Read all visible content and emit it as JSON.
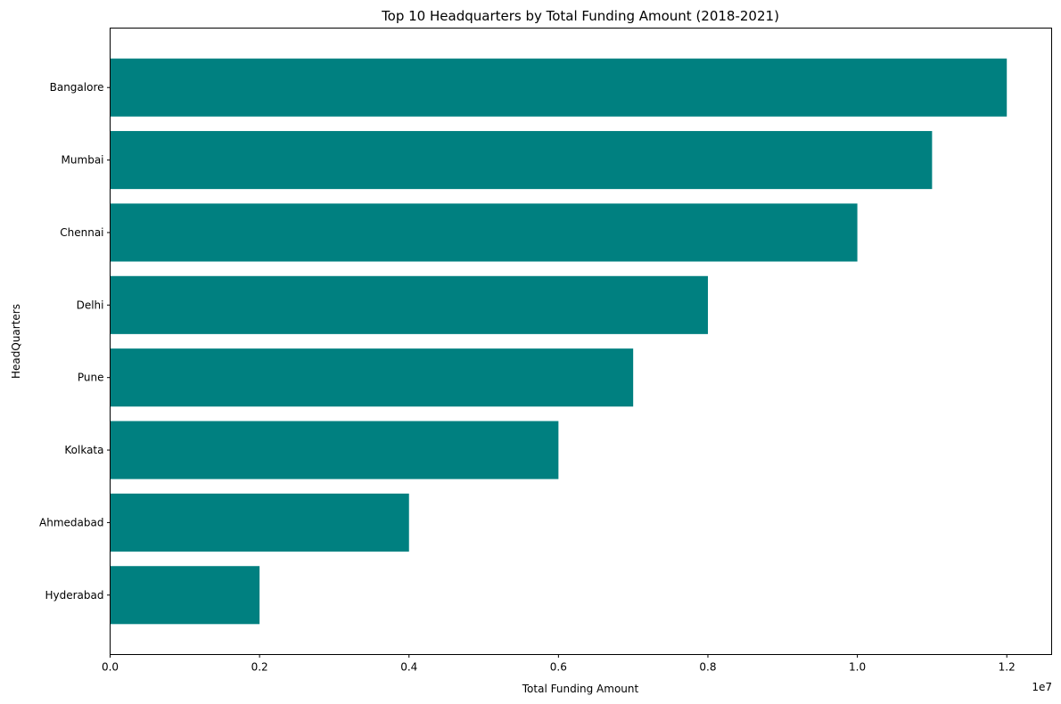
{
  "chart_data": {
    "type": "bar",
    "orientation": "horizontal",
    "title": "Top 10 Headquarters by Total Funding Amount (2018-2021)",
    "xlabel": "Total Funding Amount",
    "ylabel": "HeadQuarters",
    "categories": [
      "Bangalore",
      "Mumbai",
      "Chennai",
      "Delhi",
      "Pune",
      "Kolkata",
      "Ahmedabad",
      "Hyderabad"
    ],
    "values": [
      12000000,
      11000000,
      10000000,
      8000000,
      7000000,
      6000000,
      4000000,
      2000000
    ],
    "xlim": [
      0,
      12600000
    ],
    "xticks": [
      0,
      2000000,
      4000000,
      6000000,
      8000000,
      10000000,
      12000000
    ],
    "xtick_labels": [
      "0.0",
      "0.2",
      "0.4",
      "0.6",
      "0.8",
      "1.0",
      "1.2"
    ],
    "x_offset_label": "1e7",
    "bar_color": "#008080",
    "grid": false,
    "legend": "none"
  }
}
